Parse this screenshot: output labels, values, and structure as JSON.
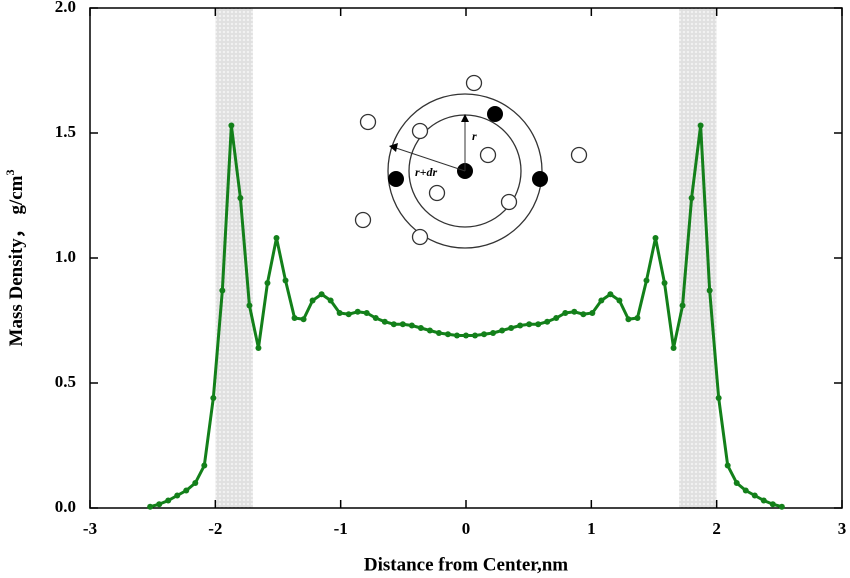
{
  "chart_data": {
    "type": "line",
    "xlabel": "Distance from Center,nm",
    "ylabel": "Mass Density，  g/cm",
    "ylabel_sup": "3",
    "annotations": [
      "r",
      "r+dr"
    ],
    "x": [
      -2.52,
      -2.448,
      -2.376,
      -2.304,
      -2.232,
      -2.16,
      -2.088,
      -2.016,
      -1.944,
      -1.872,
      -1.8,
      -1.728,
      -1.656,
      -1.584,
      -1.512,
      -1.44,
      -1.368,
      -1.296,
      -1.224,
      -1.152,
      -1.08,
      -1.008,
      -0.936,
      -0.864,
      -0.792,
      -0.72,
      -0.648,
      -0.576,
      -0.504,
      -0.432,
      -0.36,
      -0.288,
      -0.216,
      -0.144,
      -0.072,
      0,
      0.072,
      0.144,
      0.216,
      0.288,
      0.36,
      0.432,
      0.504,
      0.576,
      0.648,
      0.72,
      0.792,
      0.864,
      0.936,
      1.008,
      1.08,
      1.152,
      1.224,
      1.296,
      1.368,
      1.44,
      1.512,
      1.584,
      1.656,
      1.728,
      1.8,
      1.872,
      1.944,
      2.016,
      2.088,
      2.16,
      2.232,
      2.304,
      2.376,
      2.448,
      2.52
    ],
    "series": [
      {
        "color": "#13801a",
        "values": [
          0.005,
          0.015,
          0.03,
          0.05,
          0.07,
          0.1,
          0.17,
          0.44,
          0.87,
          1.53,
          1.24,
          0.81,
          0.64,
          0.9,
          1.08,
          0.91,
          0.76,
          0.755,
          0.83,
          0.855,
          0.83,
          0.78,
          0.775,
          0.785,
          0.78,
          0.76,
          0.745,
          0.735,
          0.735,
          0.73,
          0.72,
          0.71,
          0.7,
          0.695,
          0.69,
          0.69,
          0.69,
          0.695,
          0.7,
          0.71,
          0.72,
          0.73,
          0.735,
          0.735,
          0.745,
          0.76,
          0.78,
          0.785,
          0.775,
          0.78,
          0.83,
          0.855,
          0.83,
          0.755,
          0.76,
          0.91,
          1.08,
          0.9,
          0.64,
          0.81,
          1.24,
          1.53,
          0.87,
          0.44,
          0.17,
          0.1,
          0.07,
          0.05,
          0.03,
          0.015,
          0.005
        ]
      }
    ],
    "shaded_regions": [
      [
        -2.0,
        -1.7
      ],
      [
        1.7,
        2.0
      ]
    ],
    "xlim": [
      -3,
      3
    ],
    "xticks": [
      -3,
      -2,
      -1,
      0,
      1,
      2,
      3
    ],
    "ylim": [
      0,
      2
    ],
    "yticks": [
      {
        "value": 0,
        "label": "0.0"
      },
      0.5,
      {
        "value": 1,
        "label": "1.0"
      },
      1.5,
      {
        "value": 2,
        "label": "2.0"
      }
    ]
  }
}
